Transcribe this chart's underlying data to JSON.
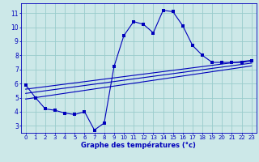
{
  "xlabel": "Graphe des températures (°c)",
  "background_color": "#cce8e8",
  "grid_color": "#99cccc",
  "line_color": "#0000bb",
  "spine_color": "#0000bb",
  "x_ticks": [
    0,
    1,
    2,
    3,
    4,
    5,
    6,
    7,
    8,
    9,
    10,
    11,
    12,
    13,
    14,
    15,
    16,
    17,
    18,
    19,
    20,
    21,
    22,
    23
  ],
  "y_ticks": [
    3,
    4,
    5,
    6,
    7,
    8,
    9,
    10,
    11
  ],
  "ylim": [
    2.5,
    11.7
  ],
  "xlim": [
    -0.5,
    23.5
  ],
  "main_line_x": [
    0,
    1,
    2,
    3,
    4,
    5,
    6,
    7,
    8,
    9,
    10,
    11,
    12,
    13,
    14,
    15,
    16,
    17,
    18,
    19,
    20,
    21,
    22,
    23
  ],
  "main_line_y": [
    5.9,
    5.0,
    4.2,
    4.1,
    3.9,
    3.8,
    4.0,
    2.7,
    3.2,
    7.2,
    9.4,
    10.4,
    10.2,
    9.6,
    11.2,
    11.1,
    10.1,
    8.7,
    8.0,
    7.5,
    7.5,
    7.5,
    7.5,
    7.6
  ],
  "line1_x": [
    0,
    23
  ],
  "line1_y": [
    5.6,
    7.65
  ],
  "line2_x": [
    0,
    23
  ],
  "line2_y": [
    5.3,
    7.45
  ],
  "line3_x": [
    0,
    23
  ],
  "line3_y": [
    4.9,
    7.25
  ],
  "tick_fontsize": 5,
  "xlabel_fontsize": 6,
  "marker_size": 2.2
}
